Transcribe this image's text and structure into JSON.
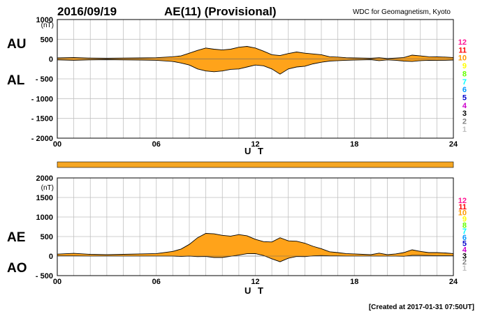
{
  "header": {
    "date": "2016/09/19",
    "title": "AE(11) (Provisional)",
    "source": "WDC for Geomagnetism, Kyoto"
  },
  "footer": {
    "created": "[Created at 2017-01-31 07:50UT]"
  },
  "colors": {
    "fill": "#ffa31a",
    "band": "#f5a623",
    "grid": "#bfbfbf",
    "line": "#000000"
  },
  "station_counts": [
    {
      "label": "12",
      "color": "#ff1493"
    },
    {
      "label": "11",
      "color": "#ff0000"
    },
    {
      "label": "10",
      "color": "#ff9900"
    },
    {
      "label": "9",
      "color": "#ffff00"
    },
    {
      "label": "8",
      "color": "#66ff00"
    },
    {
      "label": "7",
      "color": "#00ffff"
    },
    {
      "label": "6",
      "color": "#0099ff"
    },
    {
      "label": "5",
      "color": "#0000cc"
    },
    {
      "label": "4",
      "color": "#cc00cc"
    },
    {
      "label": "3",
      "color": "#000000"
    },
    {
      "label": "2",
      "color": "#808080"
    },
    {
      "label": "1",
      "color": "#c0c0c0"
    }
  ],
  "chart_data": [
    {
      "type": "area",
      "name_upper": "AU",
      "name_lower": "AL",
      "unit": "(nT)",
      "xlabel": "U T",
      "xlim": [
        0,
        24
      ],
      "x_ticks": [
        "00",
        "06",
        "12",
        "18",
        "24"
      ],
      "ylim": [
        -2000,
        1000
      ],
      "y_ticks": [
        "1000",
        "500",
        "0",
        "- 500",
        "- 1000",
        "- 1500",
        "- 2000"
      ],
      "y_tick_values": [
        1000,
        500,
        0,
        -500,
        -1000,
        -1500,
        -2000
      ],
      "grid": true,
      "x": [
        0,
        1,
        2,
        3,
        4,
        5,
        6,
        7,
        7.5,
        8,
        8.5,
        9,
        9.5,
        10,
        10.5,
        11,
        11.5,
        12,
        12.5,
        13,
        13.5,
        14,
        14.5,
        15,
        15.5,
        16,
        16.5,
        17,
        17.5,
        18,
        18.5,
        19,
        19.5,
        20,
        20.5,
        21,
        21.5,
        22,
        22.5,
        23,
        23.5,
        24
      ],
      "series": [
        {
          "name": "AU",
          "values": [
            30,
            40,
            25,
            20,
            25,
            30,
            35,
            60,
            80,
            150,
            220,
            280,
            250,
            230,
            250,
            300,
            320,
            280,
            200,
            110,
            90,
            140,
            180,
            150,
            130,
            110,
            60,
            50,
            35,
            30,
            25,
            20,
            35,
            15,
            25,
            40,
            100,
            80,
            60,
            55,
            50,
            40
          ]
        },
        {
          "name": "AL",
          "values": [
            -20,
            -30,
            -20,
            -15,
            -20,
            -25,
            -30,
            -60,
            -100,
            -150,
            -250,
            -300,
            -320,
            -300,
            -260,
            -250,
            -200,
            -150,
            -170,
            -250,
            -380,
            -250,
            -200,
            -180,
            -120,
            -80,
            -50,
            -40,
            -30,
            -25,
            -20,
            -15,
            -40,
            -20,
            -30,
            -50,
            -60,
            -40,
            -30,
            -35,
            -30,
            -25
          ]
        }
      ]
    },
    {
      "type": "area",
      "name_upper": "AE",
      "name_lower": "AO",
      "unit": "(nT)",
      "xlabel": "U T",
      "xlim": [
        0,
        24
      ],
      "x_ticks": [
        "00",
        "06",
        "12",
        "18",
        "24"
      ],
      "ylim": [
        -500,
        2000
      ],
      "y_ticks": [
        "2000",
        "1500",
        "1000",
        "500",
        "0",
        "- 500"
      ],
      "y_tick_values": [
        2000,
        1500,
        1000,
        500,
        0,
        -500
      ],
      "grid": true,
      "x": [
        0,
        1,
        2,
        3,
        4,
        5,
        6,
        7,
        7.5,
        8,
        8.5,
        9,
        9.5,
        10,
        10.5,
        11,
        11.5,
        12,
        12.5,
        13,
        13.5,
        14,
        14.5,
        15,
        15.5,
        16,
        16.5,
        17,
        17.5,
        18,
        18.5,
        19,
        19.5,
        20,
        20.5,
        21,
        21.5,
        22,
        22.5,
        23,
        23.5,
        24
      ],
      "series": [
        {
          "name": "AE",
          "values": [
            50,
            70,
            45,
            35,
            45,
            55,
            65,
            120,
            180,
            300,
            470,
            580,
            570,
            530,
            510,
            550,
            520,
            430,
            370,
            360,
            470,
            390,
            380,
            330,
            250,
            190,
            110,
            90,
            65,
            55,
            45,
            35,
            75,
            35,
            55,
            90,
            160,
            120,
            90,
            90,
            80,
            65
          ]
        },
        {
          "name": "AO",
          "values": [
            5,
            5,
            2,
            2,
            2,
            2,
            2,
            0,
            -10,
            0,
            -15,
            -10,
            -35,
            -35,
            -5,
            25,
            60,
            65,
            15,
            -70,
            -145,
            -55,
            -10,
            -15,
            5,
            15,
            5,
            5,
            2,
            2,
            2,
            2,
            -2,
            -2,
            -2,
            -5,
            20,
            20,
            15,
            10,
            10,
            8
          ]
        }
      ]
    }
  ]
}
